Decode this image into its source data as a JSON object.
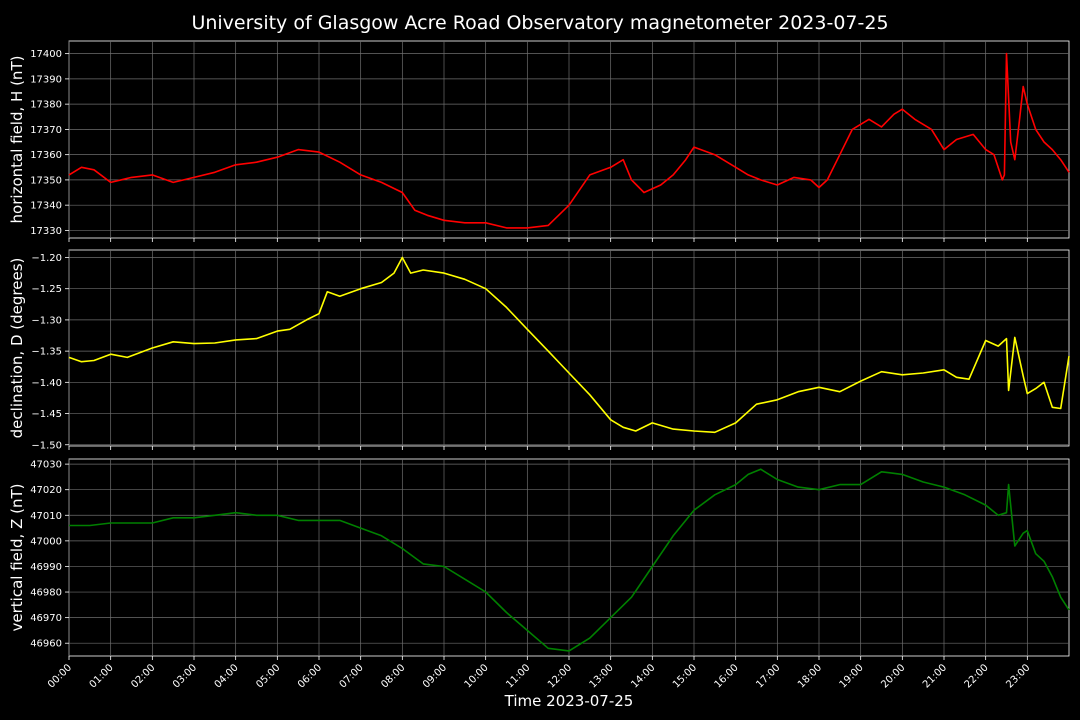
{
  "title": "University of Glasgow Acre Road Observatory magnetometer 2023-07-25",
  "xlabel": "Time 2023-07-25",
  "time_ticks": [
    "00:00",
    "01:00",
    "02:00",
    "03:00",
    "04:00",
    "05:00",
    "06:00",
    "07:00",
    "08:00",
    "09:00",
    "10:00",
    "11:00",
    "12:00",
    "13:00",
    "14:00",
    "15:00",
    "16:00",
    "17:00",
    "18:00",
    "19:00",
    "20:00",
    "21:00",
    "22:00",
    "23:00"
  ],
  "chart_data": [
    {
      "type": "line",
      "ylabel": "horizontal field, H (nT)",
      "color": "#ff0000",
      "xlim": [
        0,
        24
      ],
      "ylim": [
        17327,
        17405
      ],
      "yticks": [
        17330,
        17340,
        17350,
        17360,
        17370,
        17380,
        17390,
        17400
      ],
      "x": [
        0,
        0.3,
        0.6,
        1.0,
        1.5,
        2.0,
        2.5,
        3.0,
        3.5,
        4.0,
        4.5,
        5.0,
        5.5,
        6.0,
        6.5,
        7.0,
        7.5,
        8.0,
        8.3,
        8.6,
        9.0,
        9.5,
        10.0,
        10.5,
        11.0,
        11.5,
        12.0,
        12.5,
        13.0,
        13.3,
        13.5,
        13.8,
        14.2,
        14.5,
        14.8,
        15.0,
        15.5,
        16.0,
        16.3,
        16.6,
        17.0,
        17.4,
        17.8,
        18.0,
        18.2,
        18.5,
        18.8,
        19.2,
        19.5,
        19.8,
        20.0,
        20.3,
        20.7,
        21.0,
        21.3,
        21.7,
        22.0,
        22.2,
        22.4,
        22.45,
        22.5,
        22.6,
        22.7,
        22.8,
        22.9,
        23.0,
        23.2,
        23.4,
        23.6,
        23.8,
        24.0
      ],
      "y": [
        17352,
        17355,
        17354,
        17349,
        17351,
        17352,
        17349,
        17351,
        17353,
        17356,
        17357,
        17359,
        17362,
        17361,
        17357,
        17352,
        17349,
        17345,
        17338,
        17336,
        17334,
        17333,
        17333,
        17331,
        17331,
        17332,
        17340,
        17352,
        17355,
        17358,
        17350,
        17345,
        17348,
        17352,
        17358,
        17363,
        17360,
        17355,
        17352,
        17350,
        17348,
        17351,
        17350,
        17347,
        17350,
        17360,
        17370,
        17374,
        17371,
        17376,
        17378,
        17374,
        17370,
        17362,
        17366,
        17368,
        17362,
        17360,
        17350,
        17352,
        17400,
        17365,
        17358,
        17372,
        17387,
        17380,
        17370,
        17365,
        17362,
        17358,
        17353
      ]
    },
    {
      "type": "line",
      "ylabel": "declination, D (degrees)",
      "color": "#ffff00",
      "xlim": [
        0,
        24
      ],
      "ylim": [
        -1.502,
        -1.188
      ],
      "yticks": [
        -1.2,
        -1.25,
        -1.3,
        -1.35,
        -1.4,
        -1.45,
        -1.5
      ],
      "ytick_labels": [
        "−1.20",
        "−1.25",
        "−1.30",
        "−1.35",
        "−1.40",
        "−1.45",
        "−1.50"
      ],
      "x": [
        0,
        0.3,
        0.6,
        1.0,
        1.4,
        2.0,
        2.5,
        3.0,
        3.5,
        4.0,
        4.5,
        5.0,
        5.3,
        5.7,
        6.0,
        6.2,
        6.5,
        7.0,
        7.5,
        7.8,
        8.0,
        8.2,
        8.5,
        9.0,
        9.5,
        10.0,
        10.5,
        11.0,
        11.5,
        12.0,
        12.5,
        13.0,
        13.3,
        13.6,
        14.0,
        14.5,
        15.0,
        15.5,
        16.0,
        16.5,
        17.0,
        17.5,
        18.0,
        18.5,
        19.0,
        19.5,
        20.0,
        20.5,
        21.0,
        21.3,
        21.6,
        22.0,
        22.3,
        22.5,
        22.55,
        22.7,
        22.9,
        23.0,
        23.2,
        23.4,
        23.6,
        23.8,
        24.0
      ],
      "y": [
        -1.36,
        -1.367,
        -1.365,
        -1.355,
        -1.36,
        -1.345,
        -1.335,
        -1.338,
        -1.337,
        -1.332,
        -1.33,
        -1.318,
        -1.315,
        -1.3,
        -1.29,
        -1.255,
        -1.262,
        -1.25,
        -1.24,
        -1.225,
        -1.2,
        -1.225,
        -1.22,
        -1.225,
        -1.235,
        -1.25,
        -1.28,
        -1.315,
        -1.35,
        -1.385,
        -1.42,
        -1.46,
        -1.472,
        -1.478,
        -1.465,
        -1.475,
        -1.478,
        -1.48,
        -1.465,
        -1.435,
        -1.428,
        -1.415,
        -1.408,
        -1.415,
        -1.398,
        -1.383,
        -1.388,
        -1.385,
        -1.38,
        -1.392,
        -1.395,
        -1.333,
        -1.342,
        -1.33,
        -1.413,
        -1.328,
        -1.39,
        -1.418,
        -1.41,
        -1.4,
        -1.44,
        -1.442,
        -1.358
      ]
    },
    {
      "type": "line",
      "ylabel": "vertical field, Z (nT)",
      "color": "#008000",
      "xlim": [
        0,
        24
      ],
      "ylim": [
        46955,
        47032
      ],
      "yticks": [
        46960,
        46970,
        46980,
        46990,
        47000,
        47010,
        47020,
        47030
      ],
      "x": [
        0,
        0.5,
        1.0,
        1.5,
        2.0,
        2.5,
        3.0,
        3.5,
        4.0,
        4.5,
        5.0,
        5.5,
        6.0,
        6.5,
        7.0,
        7.5,
        8.0,
        8.5,
        9.0,
        9.5,
        10.0,
        10.5,
        11.0,
        11.5,
        12.0,
        12.5,
        13.0,
        13.5,
        14.0,
        14.5,
        15.0,
        15.5,
        16.0,
        16.3,
        16.6,
        17.0,
        17.5,
        18.0,
        18.5,
        19.0,
        19.5,
        20.0,
        20.5,
        21.0,
        21.5,
        22.0,
        22.3,
        22.5,
        22.55,
        22.7,
        22.9,
        23.0,
        23.2,
        23.4,
        23.6,
        23.8,
        24.0
      ],
      "y": [
        47006,
        47006,
        47007,
        47007,
        47007,
        47009,
        47009,
        47010,
        47011,
        47010,
        47010,
        47008,
        47008,
        47008,
        47005,
        47002,
        46997,
        46991,
        46990,
        46985,
        46980,
        46972,
        46965,
        46958,
        46957,
        46962,
        46970,
        46978,
        46990,
        47002,
        47012,
        47018,
        47022,
        47026,
        47028,
        47024,
        47021,
        47020,
        47022,
        47022,
        47027,
        47026,
        47023,
        47021,
        47018,
        47014,
        47010,
        47011,
        47022,
        46998,
        47003,
        47004,
        46995,
        46992,
        46986,
        46978,
        46973
      ]
    }
  ]
}
